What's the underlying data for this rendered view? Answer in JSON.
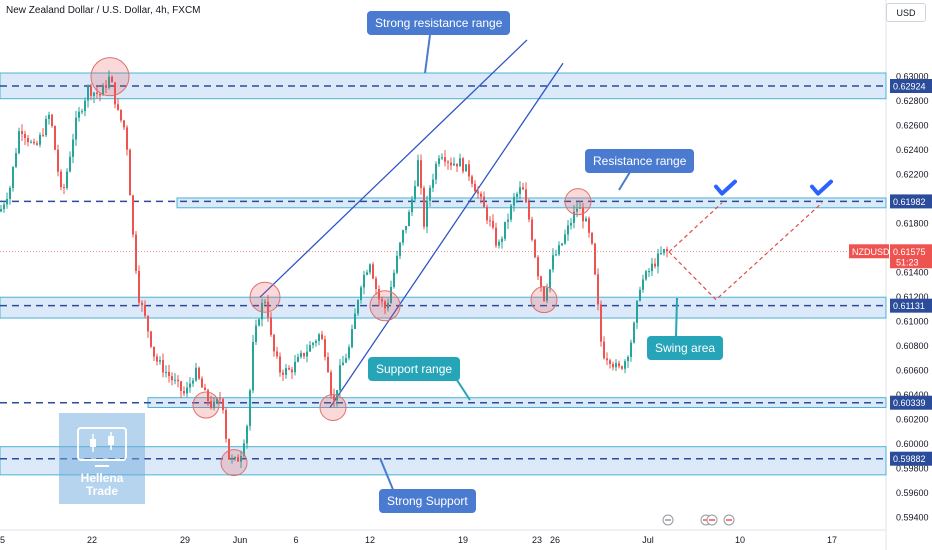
{
  "header": {
    "title": "New Zealand Dollar / U.S. Dollar, 4h, FXCM",
    "currency_button": "USD"
  },
  "annotations": {
    "strong_resistance": "Strong resistance range",
    "resistance": "Resistance range",
    "support": "Support range",
    "strong_support": "Strong Support",
    "swing": "Swing area"
  },
  "logo": {
    "line1": "Hellena",
    "line2": "Trade"
  },
  "colors": {
    "bull": "#26a69a",
    "bear": "#ef5350",
    "zone_fill": "#cfe2f7",
    "zone_border": "#4ab4d4",
    "dashed_level": "#2b4c9b",
    "price_label": "#2b4c9b",
    "current_label": "#ef5350",
    "blue_callout": "#4a7bd0",
    "teal_callout": "#26a5b9",
    "path_red": "#e04c4c",
    "check_blue": "#2962ff"
  },
  "chart_data": {
    "type": "candlestick",
    "symbol": "NZDUSD",
    "current_price": "0.61575",
    "countdown": "51:23",
    "ylim": [
      0.593,
      0.6343
    ],
    "y_ticks": [
      "0.63000",
      "0.62800",
      "0.62600",
      "0.62400",
      "0.62200",
      "0.62000",
      "0.61800",
      "0.61600",
      "0.61400",
      "0.61200",
      "0.61000",
      "0.60800",
      "0.60600",
      "0.60400",
      "0.60200",
      "0.60000",
      "0.59800",
      "0.59600",
      "0.59400"
    ],
    "x_ticks": [
      {
        "label": "5",
        "t": 0
      },
      {
        "label": "22",
        "t": 92
      },
      {
        "label": "29",
        "t": 185
      },
      {
        "label": "Jun",
        "t": 240
      },
      {
        "label": "6",
        "t": 296
      },
      {
        "label": "12",
        "t": 370
      },
      {
        "label": "19",
        "t": 463
      },
      {
        "label": "23",
        "t": 537
      },
      {
        "label": "26",
        "t": 555
      },
      {
        "label": "Jul",
        "t": 648
      },
      {
        "label": "10",
        "t": 740
      },
      {
        "label": "17",
        "t": 832
      }
    ],
    "key_levels": [
      {
        "price": 0.62924,
        "label": "0.62924"
      },
      {
        "price": 0.61982,
        "label": "0.61982"
      },
      {
        "price": 0.61131,
        "label": "0.61131"
      },
      {
        "price": 0.60339,
        "label": "0.60339"
      },
      {
        "price": 0.59882,
        "label": "0.59882"
      }
    ],
    "zones": [
      {
        "name": "strong-resistance",
        "low": 0.6282,
        "high": 0.6303
      },
      {
        "name": "resistance",
        "low": 0.6193,
        "high": 0.6201
      },
      {
        "name": "support",
        "low": 0.6103,
        "high": 0.612
      },
      {
        "name": "support-lower",
        "low": 0.603,
        "high": 0.6038
      },
      {
        "name": "strong-support",
        "low": 0.5975,
        "high": 0.5998
      }
    ],
    "price_path": [
      [
        0,
        0.619
      ],
      [
        10,
        0.621
      ],
      [
        20,
        0.626
      ],
      [
        35,
        0.624
      ],
      [
        50,
        0.627
      ],
      [
        62,
        0.62
      ],
      [
        75,
        0.626
      ],
      [
        88,
        0.629
      ],
      [
        100,
        0.6285
      ],
      [
        110,
        0.63
      ],
      [
        118,
        0.627
      ],
      [
        126,
        0.6255
      ],
      [
        133,
        0.617
      ],
      [
        139,
        0.612
      ],
      [
        146,
        0.61
      ],
      [
        155,
        0.607
      ],
      [
        165,
        0.606
      ],
      [
        175,
        0.605
      ],
      [
        185,
        0.604
      ],
      [
        195,
        0.606
      ],
      [
        205,
        0.604
      ],
      [
        213,
        0.603
      ],
      [
        222,
        0.604
      ],
      [
        228,
        0.599
      ],
      [
        234,
        0.5985
      ],
      [
        240,
        0.599
      ],
      [
        248,
        0.602
      ],
      [
        253,
        0.608
      ],
      [
        260,
        0.611
      ],
      [
        266,
        0.612
      ],
      [
        272,
        0.608
      ],
      [
        280,
        0.606
      ],
      [
        290,
        0.606
      ],
      [
        300,
        0.607
      ],
      [
        310,
        0.608
      ],
      [
        320,
        0.609
      ],
      [
        327,
        0.607
      ],
      [
        333,
        0.603
      ],
      [
        340,
        0.606
      ],
      [
        350,
        0.608
      ],
      [
        360,
        0.613
      ],
      [
        370,
        0.615
      ],
      [
        378,
        0.612
      ],
      [
        386,
        0.611
      ],
      [
        394,
        0.614
      ],
      [
        402,
        0.617
      ],
      [
        410,
        0.619
      ],
      [
        418,
        0.623
      ],
      [
        424,
        0.618
      ],
      [
        430,
        0.621
      ],
      [
        440,
        0.624
      ],
      [
        450,
        0.623
      ],
      [
        460,
        0.623
      ],
      [
        470,
        0.622
      ],
      [
        480,
        0.62
      ],
      [
        490,
        0.618
      ],
      [
        498,
        0.616
      ],
      [
        506,
        0.618
      ],
      [
        514,
        0.62
      ],
      [
        522,
        0.621
      ],
      [
        530,
        0.618
      ],
      [
        538,
        0.614
      ],
      [
        544,
        0.612
      ],
      [
        552,
        0.615
      ],
      [
        560,
        0.616
      ],
      [
        570,
        0.618
      ],
      [
        578,
        0.6195
      ],
      [
        586,
        0.618
      ],
      [
        592,
        0.616
      ],
      [
        597,
        0.612
      ],
      [
        602,
        0.6075
      ],
      [
        610,
        0.607
      ],
      [
        618,
        0.606
      ],
      [
        626,
        0.607
      ],
      [
        633,
        0.609
      ],
      [
        640,
        0.613
      ],
      [
        648,
        0.614
      ],
      [
        656,
        0.615
      ],
      [
        664,
        0.6157
      ],
      [
        669,
        0.6157
      ]
    ],
    "projection": [
      [
        669,
        0.6157
      ],
      [
        722,
        0.6197
      ],
      [
        669,
        0.6157
      ],
      [
        716,
        0.6118
      ],
      [
        822,
        0.6197
      ]
    ],
    "channel_lines": [
      {
        "from": [
          260,
          0.612
        ],
        "to": [
          527,
          0.633
        ]
      },
      {
        "from": [
          330,
          0.603
        ],
        "to": [
          563,
          0.6311
        ]
      }
    ],
    "marked_points": [
      {
        "t": 110,
        "price": 0.63
      },
      {
        "t": 265,
        "price": 0.612
      },
      {
        "t": 385,
        "price": 0.6113
      },
      {
        "t": 206,
        "price": 0.6032
      },
      {
        "t": 333,
        "price": 0.603
      },
      {
        "t": 234,
        "price": 0.5985
      },
      {
        "t": 544,
        "price": 0.6118
      },
      {
        "t": 578,
        "price": 0.6198
      }
    ],
    "check_marks": [
      {
        "t": 726,
        "price": 0.6207
      },
      {
        "t": 822,
        "price": 0.6207
      }
    ]
  }
}
